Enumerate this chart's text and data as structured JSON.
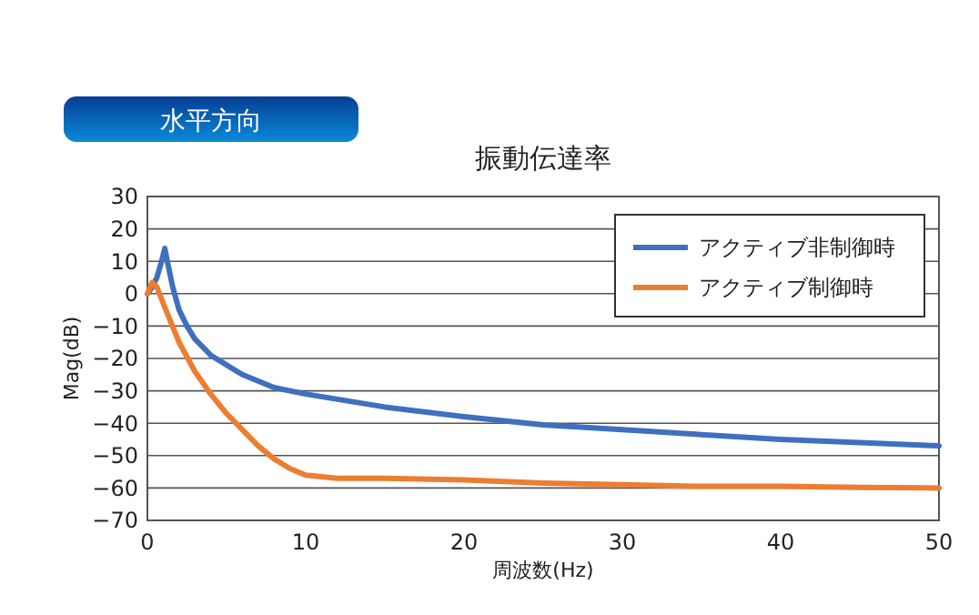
{
  "chart_data": {
    "type": "line",
    "title": "振動伝達率",
    "subtitle": "水平方向",
    "xlabel": "周波数(Hz)",
    "ylabel": "Mag(dB)",
    "xlim": [
      0,
      50
    ],
    "xticks": [
      0,
      10,
      20,
      30,
      40,
      50
    ],
    "ylim": [
      -70,
      30
    ],
    "yticks": [
      30,
      20,
      10,
      0,
      {
        "value": -10,
        "label": "−10"
      },
      {
        "value": -20,
        "label": "−20"
      },
      {
        "value": -30,
        "label": "−30"
      },
      {
        "value": -40,
        "label": "−40"
      },
      {
        "value": -50,
        "label": "−50"
      },
      {
        "value": -60,
        "label": "−60"
      },
      {
        "value": -70,
        "label": "−70"
      }
    ],
    "grid": "y",
    "legend": "top right",
    "marker": "none",
    "line_style": "solid",
    "series": [
      {
        "name": "アクティブ非制御時",
        "color": "#3f6fbf",
        "x": [
          0,
          0.3,
          0.6,
          0.9,
          1.1,
          1.3,
          1.6,
          2,
          2.5,
          3,
          4,
          5,
          6,
          8,
          10,
          15,
          20,
          25,
          30,
          35,
          40,
          45,
          50
        ],
        "values": [
          0,
          2,
          5,
          10,
          14,
          9,
          2,
          -5,
          -10,
          -14,
          -19,
          -22,
          -25,
          -29,
          -31,
          -35,
          -38,
          -40.5,
          -42,
          -43.5,
          -45,
          -46,
          -47
        ]
      },
      {
        "name": "アクティブ制御時",
        "color": "#ed7d31",
        "x": [
          0,
          0.3,
          0.6,
          1,
          1.5,
          2,
          3,
          4,
          5,
          6,
          7,
          8,
          9,
          10,
          11,
          12,
          15,
          20,
          25,
          30,
          35,
          40,
          45,
          50
        ],
        "values": [
          0,
          3.5,
          2,
          -3,
          -9,
          -15,
          -24,
          -31,
          -37,
          -42,
          -47,
          -51,
          -54,
          -56,
          -56.5,
          -57,
          -57,
          -57.5,
          -58.5,
          -59,
          -59.5,
          -59.5,
          -59.8,
          -60
        ]
      }
    ]
  }
}
